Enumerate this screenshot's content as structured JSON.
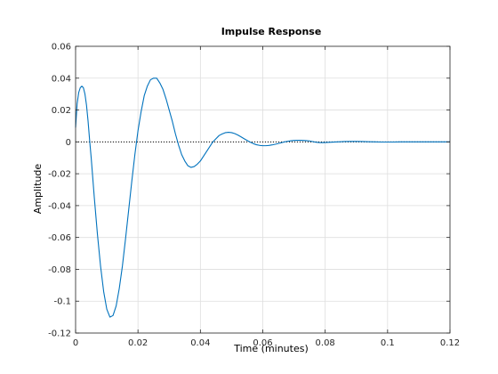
{
  "chart_data": {
    "type": "line",
    "title": "Impulse Response",
    "xlabel": "Time (minutes)",
    "ylabel": "Amplitude",
    "xlim": [
      0,
      0.12
    ],
    "ylim": [
      -0.12,
      0.06
    ],
    "xticks": [
      0,
      0.02,
      0.04,
      0.06,
      0.08,
      0.1,
      0.12
    ],
    "xtick_labels": [
      "0",
      "0.02",
      "0.04",
      "0.06",
      "0.08",
      "0.1",
      "0.12"
    ],
    "yticks": [
      -0.12,
      -0.1,
      -0.08,
      -0.06,
      -0.04,
      -0.02,
      0,
      0.02,
      0.04,
      0.06
    ],
    "ytick_labels": [
      "-0.12",
      "-0.1",
      "-0.08",
      "-0.06",
      "-0.04",
      "-0.02",
      "0",
      "0.02",
      "0.04",
      "0.06"
    ],
    "grid": true,
    "zero_line": {
      "y": 0,
      "style": "dotted"
    },
    "colors": {
      "series": "#0072bd",
      "grid": "#dedede",
      "axes": "#262626"
    },
    "series": [
      {
        "x": [
          0,
          0.0005,
          0.001,
          0.0015,
          0.002,
          0.0025,
          0.003,
          0.0035,
          0.004,
          0.0045,
          0.005,
          0.006,
          0.007,
          0.008,
          0.009,
          0.01,
          0.011,
          0.012,
          0.013,
          0.014,
          0.015,
          0.016,
          0.017,
          0.018,
          0.019,
          0.02,
          0.021,
          0.022,
          0.023,
          0.024,
          0.025,
          0.026,
          0.027,
          0.028,
          0.029,
          0.03,
          0.031,
          0.032,
          0.033,
          0.034,
          0.035,
          0.036,
          0.037,
          0.038,
          0.039,
          0.04,
          0.041,
          0.042,
          0.043,
          0.044,
          0.045,
          0.046,
          0.047,
          0.048,
          0.049,
          0.05,
          0.051,
          0.052,
          0.053,
          0.054,
          0.055,
          0.056,
          0.057,
          0.058,
          0.059,
          0.06,
          0.061,
          0.062,
          0.063,
          0.064,
          0.065,
          0.066,
          0.067,
          0.068,
          0.069,
          0.07,
          0.071,
          0.072,
          0.073,
          0.074,
          0.075,
          0.076,
          0.077,
          0.078,
          0.079,
          0.08,
          0.082,
          0.084,
          0.086,
          0.088,
          0.09,
          0.092,
          0.094,
          0.096,
          0.098,
          0.1,
          0.102,
          0.104,
          0.106,
          0.108,
          0.11,
          0.112,
          0.114,
          0.116,
          0.118,
          0.12
        ],
        "y": [
          0.009,
          0.024,
          0.031,
          0.034,
          0.035,
          0.034,
          0.03,
          0.023,
          0.013,
          0.001,
          -0.01,
          -0.035,
          -0.058,
          -0.078,
          -0.094,
          -0.105,
          -0.11,
          -0.109,
          -0.103,
          -0.092,
          -0.078,
          -0.061,
          -0.043,
          -0.025,
          -0.008,
          0.007,
          0.019,
          0.029,
          0.035,
          0.039,
          0.04,
          0.04,
          0.037,
          0.033,
          0.027,
          0.02,
          0.013,
          0.005,
          -0.002,
          -0.008,
          -0.012,
          -0.015,
          -0.016,
          -0.0155,
          -0.014,
          -0.012,
          -0.009,
          -0.006,
          -0.003,
          0.0,
          0.002,
          0.004,
          0.005,
          0.0058,
          0.006,
          0.0058,
          0.0052,
          0.0043,
          0.0032,
          0.002,
          0.0009,
          -0.0002,
          -0.0011,
          -0.0018,
          -0.0022,
          -0.0024,
          -0.0024,
          -0.0022,
          -0.0019,
          -0.0015,
          -0.001,
          -0.0005,
          0.0,
          0.0004,
          0.0007,
          0.0009,
          0.001,
          0.001,
          0.0009,
          0.0008,
          0.0006,
          0.0002,
          -0.0002,
          -0.0004,
          -0.0005,
          -0.0004,
          -0.0002,
          0.0,
          0.0002,
          0.0003,
          0.0003,
          0.0002,
          0.0001,
          0.0,
          -0.0001,
          -0.0001,
          -0.0001,
          0.0,
          0.0,
          0.0,
          0.0,
          0.0,
          0.0,
          0.0,
          0.0,
          0.0
        ]
      }
    ]
  }
}
